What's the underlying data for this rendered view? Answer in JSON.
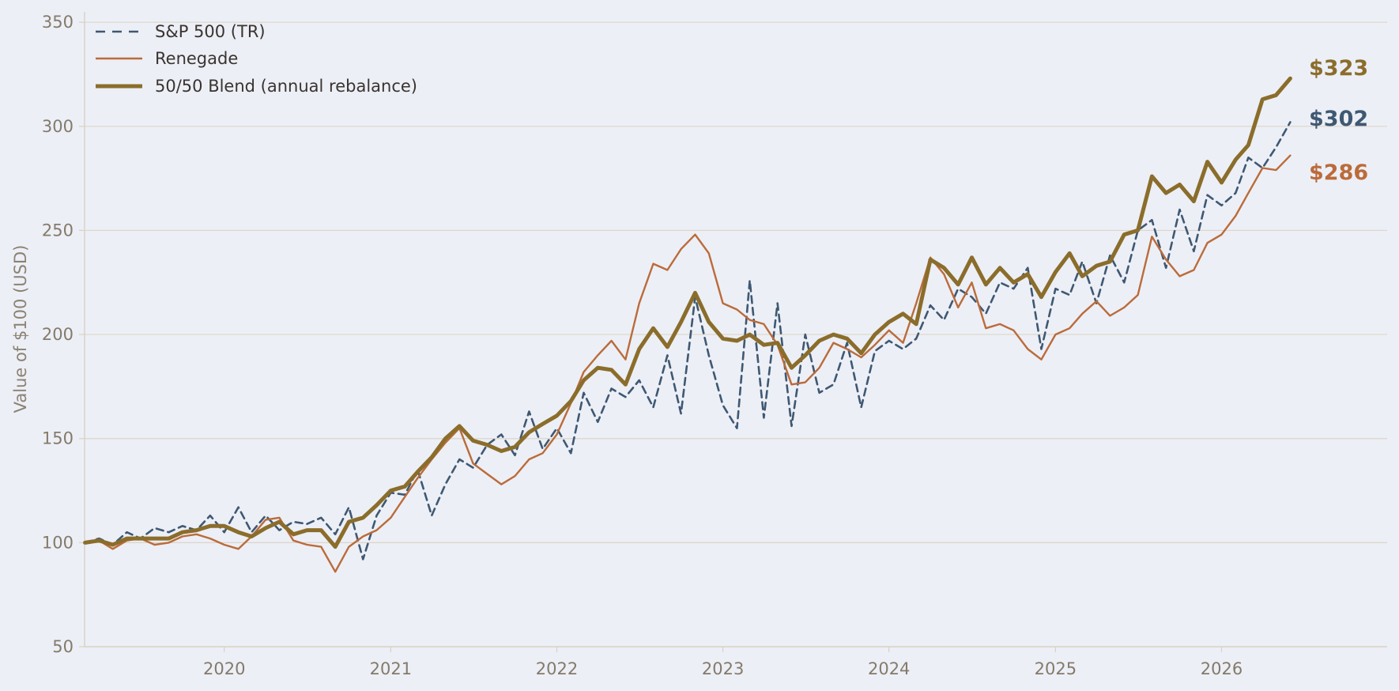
{
  "chart_data": {
    "type": "line",
    "title": "",
    "xlabel": "",
    "ylabel": "Value of $100 (USD)",
    "xlim": [
      "2019-02-28",
      "2026-12-31"
    ],
    "ylim": [
      50,
      355
    ],
    "x_ticks": [
      "2020",
      "2021",
      "2022",
      "2023",
      "2024",
      "2025",
      "2026"
    ],
    "y_ticks": [
      50,
      100,
      150,
      200,
      250,
      300,
      350
    ],
    "grid": "horizontal",
    "legend_position": "top-left",
    "series": [
      {
        "name": "S&P 500 (TR)",
        "color": "#3f5872",
        "style": "dashed",
        "end_label": "$302",
        "points": [
          [
            "2019-03-01",
            100
          ],
          [
            "2019-04-01",
            102
          ],
          [
            "2019-05-01",
            99
          ],
          [
            "2019-06-01",
            105
          ],
          [
            "2019-07-01",
            102
          ],
          [
            "2019-08-01",
            107
          ],
          [
            "2019-09-01",
            105
          ],
          [
            "2019-10-01",
            108
          ],
          [
            "2019-11-01",
            106
          ],
          [
            "2019-12-01",
            113
          ],
          [
            "2020-01-01",
            105
          ],
          [
            "2020-02-01",
            117
          ],
          [
            "2020-03-01",
            105
          ],
          [
            "2020-04-01",
            113
          ],
          [
            "2020-05-01",
            106
          ],
          [
            "2020-06-01",
            110
          ],
          [
            "2020-07-01",
            109
          ],
          [
            "2020-08-01",
            112
          ],
          [
            "2020-09-01",
            104
          ],
          [
            "2020-10-01",
            117
          ],
          [
            "2020-11-01",
            92
          ],
          [
            "2020-12-01",
            113
          ],
          [
            "2021-01-01",
            124
          ],
          [
            "2021-02-01",
            123
          ],
          [
            "2021-03-01",
            135
          ],
          [
            "2021-04-01",
            113
          ],
          [
            "2021-05-01",
            128
          ],
          [
            "2021-06-01",
            140
          ],
          [
            "2021-07-01",
            136
          ],
          [
            "2021-08-01",
            147
          ],
          [
            "2021-09-01",
            152
          ],
          [
            "2021-10-01",
            142
          ],
          [
            "2021-11-01",
            163
          ],
          [
            "2021-12-01",
            145
          ],
          [
            "2022-01-01",
            155
          ],
          [
            "2022-02-01",
            143
          ],
          [
            "2022-03-01",
            172
          ],
          [
            "2022-04-01",
            158
          ],
          [
            "2022-05-01",
            174
          ],
          [
            "2022-06-01",
            170
          ],
          [
            "2022-07-01",
            178
          ],
          [
            "2022-08-01",
            165
          ],
          [
            "2022-09-01",
            190
          ],
          [
            "2022-10-01",
            162
          ],
          [
            "2022-11-01",
            218
          ],
          [
            "2022-12-01",
            190
          ],
          [
            "2023-01-01",
            166
          ],
          [
            "2023-02-01",
            155
          ],
          [
            "2023-03-01",
            226
          ],
          [
            "2023-04-01",
            160
          ],
          [
            "2023-05-01",
            215
          ],
          [
            "2023-06-01",
            156
          ],
          [
            "2023-07-01",
            200
          ],
          [
            "2023-08-01",
            172
          ],
          [
            "2023-09-01",
            176
          ],
          [
            "2023-10-01",
            196
          ],
          [
            "2023-11-01",
            165
          ],
          [
            "2023-12-01",
            192
          ],
          [
            "2024-01-01",
            197
          ],
          [
            "2024-02-01",
            193
          ],
          [
            "2024-03-01",
            198
          ],
          [
            "2024-04-01",
            214
          ],
          [
            "2024-05-01",
            207
          ],
          [
            "2024-06-01",
            222
          ],
          [
            "2024-07-01",
            218
          ],
          [
            "2024-08-01",
            210
          ],
          [
            "2024-09-01",
            225
          ],
          [
            "2024-10-01",
            222
          ],
          [
            "2024-11-01",
            232
          ],
          [
            "2024-12-01",
            193
          ],
          [
            "2025-01-01",
            222
          ],
          [
            "2025-02-01",
            219
          ],
          [
            "2025-03-01",
            235
          ],
          [
            "2025-04-01",
            215
          ],
          [
            "2025-05-01",
            238
          ],
          [
            "2025-06-01",
            225
          ],
          [
            "2025-07-01",
            250
          ],
          [
            "2025-08-01",
            255
          ],
          [
            "2025-09-01",
            232
          ],
          [
            "2025-10-01",
            260
          ],
          [
            "2025-11-01",
            240
          ],
          [
            "2025-12-01",
            267
          ],
          [
            "2026-01-01",
            262
          ],
          [
            "2026-02-01",
            268
          ],
          [
            "2026-03-01",
            285
          ],
          [
            "2026-04-01",
            280
          ],
          [
            "2026-05-01",
            290
          ],
          [
            "2026-06-01",
            302
          ]
        ]
      },
      {
        "name": "Renegade",
        "color": "#bb6b3a",
        "style": "solid",
        "end_label": "$286",
        "points": [
          [
            "2019-03-01",
            100
          ],
          [
            "2019-04-01",
            101
          ],
          [
            "2019-05-01",
            97
          ],
          [
            "2019-06-01",
            101
          ],
          [
            "2019-07-01",
            102
          ],
          [
            "2019-08-01",
            99
          ],
          [
            "2019-09-01",
            100
          ],
          [
            "2019-10-01",
            103
          ],
          [
            "2019-11-01",
            104
          ],
          [
            "2019-12-01",
            102
          ],
          [
            "2020-01-01",
            99
          ],
          [
            "2020-02-01",
            97
          ],
          [
            "2020-03-01",
            103
          ],
          [
            "2020-04-01",
            111
          ],
          [
            "2020-05-01",
            112
          ],
          [
            "2020-06-01",
            101
          ],
          [
            "2020-07-01",
            99
          ],
          [
            "2020-08-01",
            98
          ],
          [
            "2020-09-01",
            86
          ],
          [
            "2020-10-01",
            98
          ],
          [
            "2020-11-01",
            103
          ],
          [
            "2020-12-01",
            106
          ],
          [
            "2021-01-01",
            112
          ],
          [
            "2021-02-01",
            122
          ],
          [
            "2021-03-01",
            131
          ],
          [
            "2021-04-01",
            140
          ],
          [
            "2021-05-01",
            148
          ],
          [
            "2021-06-01",
            155
          ],
          [
            "2021-07-01",
            138
          ],
          [
            "2021-08-01",
            133
          ],
          [
            "2021-09-01",
            128
          ],
          [
            "2021-10-01",
            132
          ],
          [
            "2021-11-01",
            140
          ],
          [
            "2021-12-01",
            143
          ],
          [
            "2022-01-01",
            152
          ],
          [
            "2022-02-01",
            167
          ],
          [
            "2022-03-01",
            182
          ],
          [
            "2022-04-01",
            190
          ],
          [
            "2022-05-01",
            197
          ],
          [
            "2022-06-01",
            188
          ],
          [
            "2022-07-01",
            215
          ],
          [
            "2022-08-01",
            234
          ],
          [
            "2022-09-01",
            231
          ],
          [
            "2022-10-01",
            241
          ],
          [
            "2022-11-01",
            248
          ],
          [
            "2022-12-01",
            239
          ],
          [
            "2023-01-01",
            215
          ],
          [
            "2023-02-01",
            212
          ],
          [
            "2023-03-01",
            207
          ],
          [
            "2023-04-01",
            205
          ],
          [
            "2023-05-01",
            195
          ],
          [
            "2023-06-01",
            176
          ],
          [
            "2023-07-01",
            177
          ],
          [
            "2023-08-01",
            184
          ],
          [
            "2023-09-01",
            196
          ],
          [
            "2023-10-01",
            193
          ],
          [
            "2023-11-01",
            189
          ],
          [
            "2023-12-01",
            195
          ],
          [
            "2024-01-01",
            202
          ],
          [
            "2024-02-01",
            196
          ],
          [
            "2024-03-01",
            215
          ],
          [
            "2024-04-01",
            237
          ],
          [
            "2024-05-01",
            229
          ],
          [
            "2024-06-01",
            213
          ],
          [
            "2024-07-01",
            225
          ],
          [
            "2024-08-01",
            203
          ],
          [
            "2024-09-01",
            205
          ],
          [
            "2024-10-01",
            202
          ],
          [
            "2024-11-01",
            193
          ],
          [
            "2024-12-01",
            188
          ],
          [
            "2025-01-01",
            200
          ],
          [
            "2025-02-01",
            203
          ],
          [
            "2025-03-01",
            210
          ],
          [
            "2025-04-01",
            216
          ],
          [
            "2025-05-01",
            209
          ],
          [
            "2025-06-01",
            213
          ],
          [
            "2025-07-01",
            219
          ],
          [
            "2025-08-01",
            247
          ],
          [
            "2025-09-01",
            236
          ],
          [
            "2025-10-01",
            228
          ],
          [
            "2025-11-01",
            231
          ],
          [
            "2025-12-01",
            244
          ],
          [
            "2026-01-01",
            248
          ],
          [
            "2026-02-01",
            257
          ],
          [
            "2026-03-01",
            268
          ],
          [
            "2026-04-01",
            280
          ],
          [
            "2026-05-01",
            279
          ],
          [
            "2026-06-01",
            286
          ]
        ]
      },
      {
        "name": "50/50 Blend (annual rebalance)",
        "color": "#8b6d2b",
        "style": "thick",
        "end_label": "$323",
        "points": [
          [
            "2019-03-01",
            100
          ],
          [
            "2019-04-01",
            101
          ],
          [
            "2019-05-01",
            99
          ],
          [
            "2019-06-01",
            102
          ],
          [
            "2019-07-01",
            102
          ],
          [
            "2019-08-01",
            102
          ],
          [
            "2019-09-01",
            102
          ],
          [
            "2019-10-01",
            105
          ],
          [
            "2019-11-01",
            106
          ],
          [
            "2019-12-01",
            108
          ],
          [
            "2020-01-01",
            108
          ],
          [
            "2020-02-01",
            105
          ],
          [
            "2020-03-01",
            103
          ],
          [
            "2020-04-01",
            107
          ],
          [
            "2020-05-01",
            110
          ],
          [
            "2020-06-01",
            104
          ],
          [
            "2020-07-01",
            106
          ],
          [
            "2020-08-01",
            106
          ],
          [
            "2020-09-01",
            98
          ],
          [
            "2020-10-01",
            110
          ],
          [
            "2020-11-01",
            112
          ],
          [
            "2020-12-01",
            118
          ],
          [
            "2021-01-01",
            125
          ],
          [
            "2021-02-01",
            127
          ],
          [
            "2021-03-01",
            134
          ],
          [
            "2021-04-01",
            141
          ],
          [
            "2021-05-01",
            150
          ],
          [
            "2021-06-01",
            156
          ],
          [
            "2021-07-01",
            149
          ],
          [
            "2021-08-01",
            147
          ],
          [
            "2021-09-01",
            144
          ],
          [
            "2021-10-01",
            146
          ],
          [
            "2021-11-01",
            153
          ],
          [
            "2021-12-01",
            157
          ],
          [
            "2022-01-01",
            161
          ],
          [
            "2022-02-01",
            168
          ],
          [
            "2022-03-01",
            178
          ],
          [
            "2022-04-01",
            184
          ],
          [
            "2022-05-01",
            183
          ],
          [
            "2022-06-01",
            176
          ],
          [
            "2022-07-01",
            193
          ],
          [
            "2022-08-01",
            203
          ],
          [
            "2022-09-01",
            194
          ],
          [
            "2022-10-01",
            206
          ],
          [
            "2022-11-01",
            220
          ],
          [
            "2022-12-01",
            206
          ],
          [
            "2023-01-01",
            198
          ],
          [
            "2023-02-01",
            197
          ],
          [
            "2023-03-01",
            200
          ],
          [
            "2023-04-01",
            195
          ],
          [
            "2023-05-01",
            196
          ],
          [
            "2023-06-01",
            184
          ],
          [
            "2023-07-01",
            190
          ],
          [
            "2023-08-01",
            197
          ],
          [
            "2023-09-01",
            200
          ],
          [
            "2023-10-01",
            198
          ],
          [
            "2023-11-01",
            191
          ],
          [
            "2023-12-01",
            200
          ],
          [
            "2024-01-01",
            206
          ],
          [
            "2024-02-01",
            210
          ],
          [
            "2024-03-01",
            205
          ],
          [
            "2024-04-01",
            236
          ],
          [
            "2024-05-01",
            232
          ],
          [
            "2024-06-01",
            224
          ],
          [
            "2024-07-01",
            237
          ],
          [
            "2024-08-01",
            224
          ],
          [
            "2024-09-01",
            232
          ],
          [
            "2024-10-01",
            225
          ],
          [
            "2024-11-01",
            229
          ],
          [
            "2024-12-01",
            218
          ],
          [
            "2025-01-01",
            230
          ],
          [
            "2025-02-01",
            239
          ],
          [
            "2025-03-01",
            228
          ],
          [
            "2025-04-01",
            233
          ],
          [
            "2025-05-01",
            235
          ],
          [
            "2025-06-01",
            248
          ],
          [
            "2025-07-01",
            250
          ],
          [
            "2025-08-01",
            276
          ],
          [
            "2025-09-01",
            268
          ],
          [
            "2025-10-01",
            272
          ],
          [
            "2025-11-01",
            264
          ],
          [
            "2025-12-01",
            283
          ],
          [
            "2026-01-01",
            273
          ],
          [
            "2026-02-01",
            284
          ],
          [
            "2026-03-01",
            291
          ],
          [
            "2026-04-01",
            313
          ],
          [
            "2026-05-01",
            315
          ],
          [
            "2026-06-01",
            323
          ]
        ]
      }
    ]
  }
}
